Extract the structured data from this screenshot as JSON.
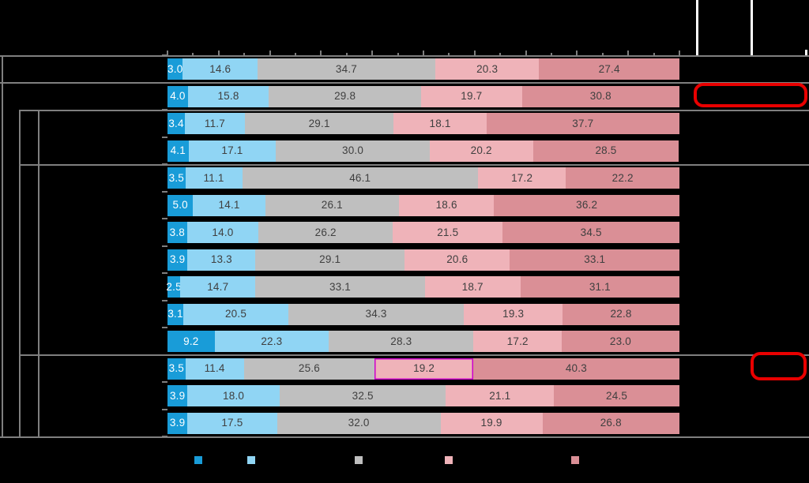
{
  "chart_data": {
    "type": "bar",
    "orientation": "horizontal",
    "stacked": true,
    "unit": "percent",
    "title": "",
    "xlabel": "",
    "ylabel": "",
    "xlim": [
      0,
      100
    ],
    "x_axis": {
      "minor_step": 5,
      "major_step": 10
    },
    "grid": false,
    "value_labels": true,
    "categories": [
      "row_1",
      "row_2",
      "row_3",
      "row_4",
      "row_5",
      "row_6",
      "row_7",
      "row_8",
      "row_9",
      "row_10",
      "row_11",
      "row_12",
      "row_13",
      "row_14"
    ],
    "series": [
      {
        "name": "dark-blue",
        "color": "#199cd8",
        "label_color": "#ffffff",
        "values": [
          3.0,
          4.0,
          3.4,
          4.1,
          3.5,
          5.0,
          3.8,
          3.9,
          2.5,
          3.1,
          9.2,
          3.5,
          3.9,
          3.9
        ]
      },
      {
        "name": "light-blue",
        "color": "#90d5f4",
        "label_color": "#3f3f3f",
        "values": [
          14.6,
          15.8,
          11.7,
          17.1,
          11.1,
          14.1,
          14.0,
          13.3,
          14.7,
          20.5,
          22.3,
          11.4,
          18.0,
          17.5
        ]
      },
      {
        "name": "gray",
        "color": "#bfbfbf",
        "label_color": "#3f3f3f",
        "values": [
          34.7,
          29.8,
          29.1,
          30.0,
          46.1,
          26.1,
          26.2,
          29.1,
          33.1,
          34.3,
          28.3,
          25.6,
          32.5,
          32.0
        ]
      },
      {
        "name": "light-pink",
        "color": "#efb3b9",
        "label_color": "#3f3f3f",
        "values": [
          20.3,
          19.7,
          18.1,
          20.2,
          17.2,
          18.6,
          21.5,
          20.6,
          18.7,
          19.3,
          17.2,
          19.2,
          21.1,
          19.9
        ]
      },
      {
        "name": "dark-pink",
        "color": "#da8f96",
        "label_color": "#3f3f3f",
        "values": [
          27.4,
          30.8,
          37.7,
          28.5,
          22.2,
          36.2,
          34.5,
          33.1,
          31.1,
          22.8,
          23.0,
          40.3,
          24.5,
          26.8
        ]
      }
    ],
    "legend": {
      "position": "bottom",
      "swatch_count": 5
    },
    "highlight": {
      "row_index": 11,
      "series_index": 3,
      "outline_color": "#cc00cc"
    },
    "row_groups": {
      "single_rows": [
        0,
        1
      ],
      "grouped_rows": [
        [
          2,
          3
        ],
        [
          4,
          5,
          6,
          7,
          8,
          9,
          10
        ],
        [
          11,
          12,
          13
        ]
      ]
    }
  },
  "annotations": {
    "box_color": "#e90000",
    "red_box_row_indices": [
      1,
      11
    ]
  }
}
